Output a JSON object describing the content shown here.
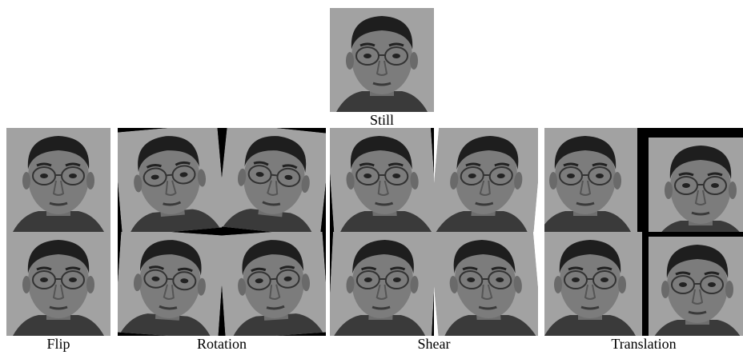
{
  "still": {
    "label": "Still"
  },
  "groups": [
    {
      "label": "Flip"
    },
    {
      "label": "Rotation"
    },
    {
      "label": "Shear"
    },
    {
      "label": "Translation"
    }
  ]
}
